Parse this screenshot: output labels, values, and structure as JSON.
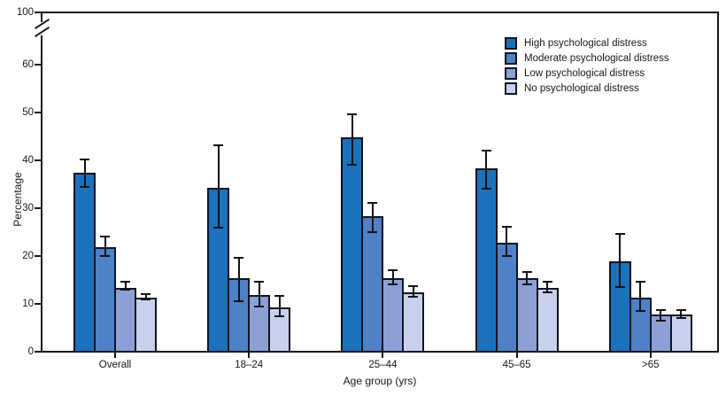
{
  "chart_data": {
    "type": "bar",
    "title": "",
    "ylabel": "Percentage",
    "xlabel": "Age group (yrs)",
    "categories": [
      "Overall",
      "18–24",
      "25–44",
      "45–65",
      ">65"
    ],
    "series": [
      {
        "name": "High psychological distress",
        "color": "#1b72bc",
        "values": [
          37.5,
          34.5,
          45,
          38.5,
          19
        ],
        "ci_low": [
          34.5,
          26,
          39,
          34,
          13.5
        ],
        "ci_high": [
          40.5,
          43.5,
          50,
          42.5,
          25
        ]
      },
      {
        "name": "Moderate psychological distress",
        "color": "#4f81c7",
        "values": [
          22,
          15.5,
          28.5,
          23,
          11.5
        ],
        "ci_low": [
          20,
          10.5,
          25,
          20,
          8.5
        ],
        "ci_high": [
          24.5,
          20,
          31.5,
          26.5,
          15
        ]
      },
      {
        "name": "Low psychological distress",
        "color": "#8da0d5",
        "values": [
          13.5,
          12,
          15.5,
          15.5,
          8
        ],
        "ci_low": [
          13,
          9.5,
          14,
          14,
          6.5
        ],
        "ci_high": [
          15,
          15,
          17.5,
          17,
          9
        ]
      },
      {
        "name": "No psychological distress",
        "color": "#c7d1ec",
        "values": [
          11.5,
          9.5,
          12.5,
          13.5,
          8
        ],
        "ci_low": [
          11,
          7.5,
          11.5,
          12.5,
          7
        ],
        "ci_high": [
          12.5,
          12,
          14,
          15,
          9
        ]
      }
    ],
    "yticks": [
      0,
      10,
      20,
      30,
      40,
      50,
      60,
      100
    ],
    "ylim": [
      0,
      100
    ],
    "y_axis_break_between": [
      60,
      100
    ],
    "error_bars": true,
    "grid": false,
    "legend_position": "top-right",
    "frame": true
  }
}
